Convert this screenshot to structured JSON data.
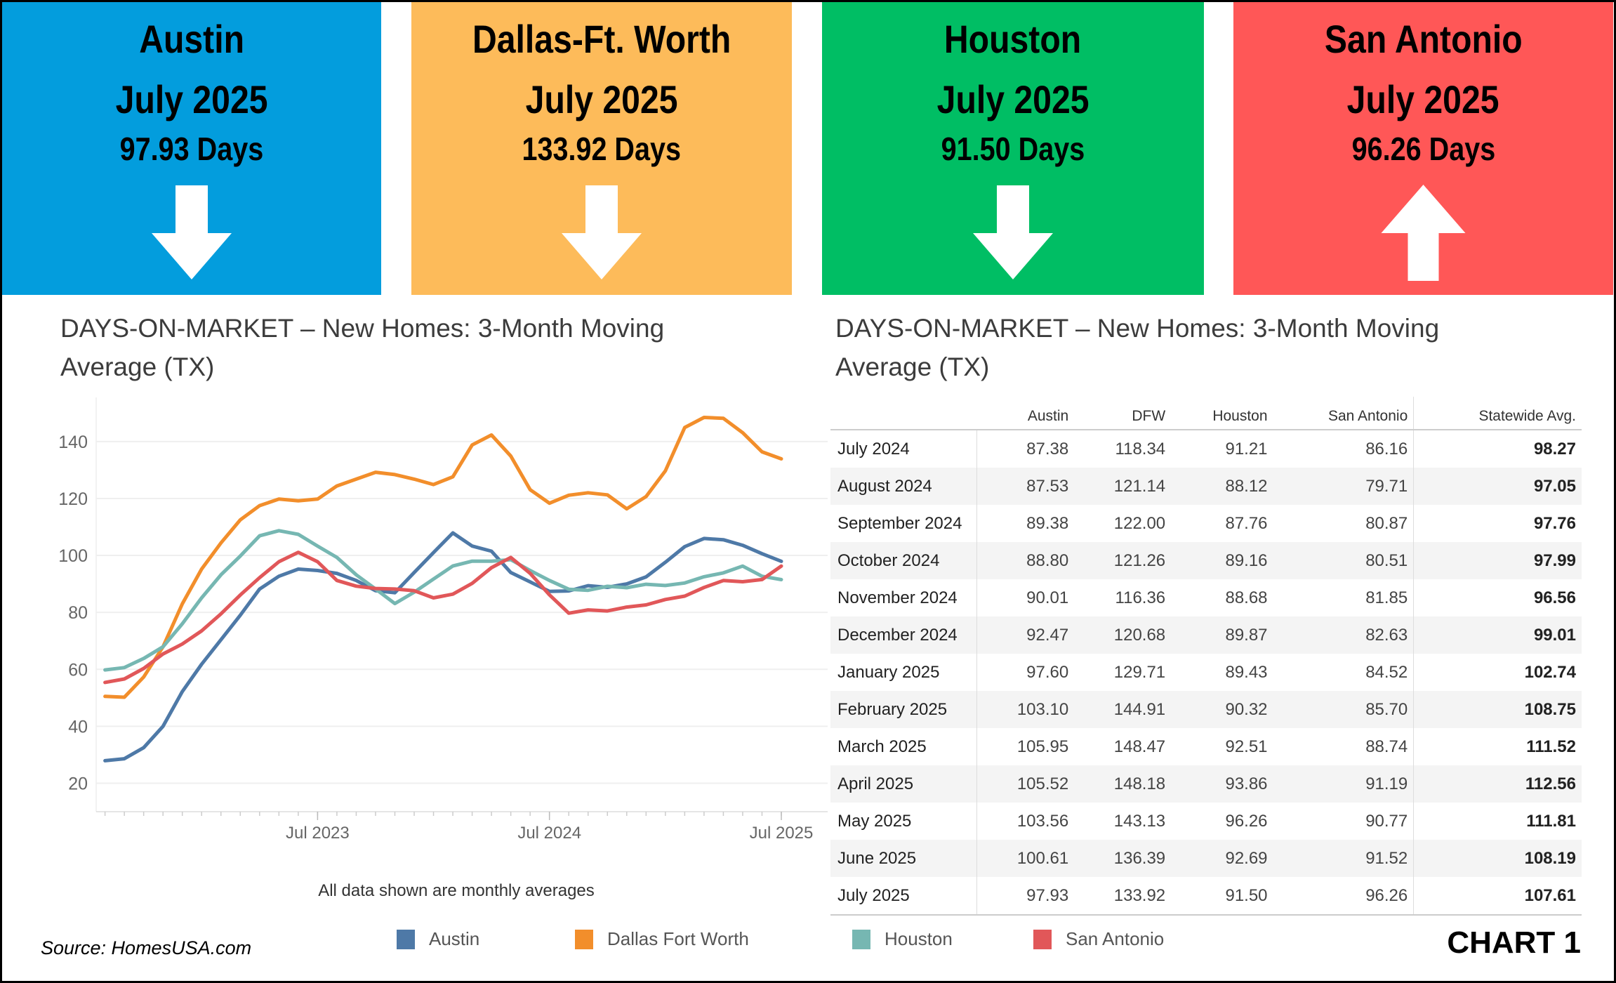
{
  "boxes": [
    {
      "city": "Austin",
      "month": "July 2025",
      "days": "97.93 Days",
      "color": "#039DDD",
      "trend": "down",
      "arrow_icon": "arrow-down-icon"
    },
    {
      "city": "Dallas-Ft. Worth",
      "month": "July 2025",
      "days": "133.92 Days",
      "color": "#FDBB5A",
      "trend": "down",
      "arrow_icon": "arrow-down-icon"
    },
    {
      "city": "Houston",
      "month": "July 2025",
      "days": "91.50 Days",
      "color": "#00BE64",
      "trend": "down",
      "arrow_icon": "arrow-down-icon"
    },
    {
      "city": "San Antonio",
      "month": "July 2025",
      "days": "96.26 Days",
      "color": "#FF5757",
      "trend": "up",
      "arrow_icon": "arrow-up-icon"
    }
  ],
  "left_title": {
    "line1": "DAYS-ON-MARKET – New Homes: 3-Month Moving",
    "line2": "Average (TX)"
  },
  "right_title": {
    "line1": "DAYS-ON-MARKET – New Homes:  3-Month Moving",
    "line2": "Average (TX)"
  },
  "note": "All data shown are monthly averages",
  "source": "Source: HomesUSA.com",
  "chart_label": "CHART 1",
  "chart_data": {
    "type": "line",
    "x_start": "2022-08",
    "x_end": "2025-07",
    "x_ticks": [
      "Jul 2023",
      "Jul 2024",
      "Jul 2025"
    ],
    "y_ticks": [
      20,
      40,
      60,
      80,
      100,
      120,
      140
    ],
    "ylim": [
      10,
      155.5
    ],
    "grid": "horizontal",
    "legend": "bottom",
    "series": [
      {
        "name": "Austin",
        "color": "#4E79A7",
        "values": [
          27.9,
          28.6,
          32.5,
          40,
          52.2,
          61.8,
          70.4,
          79,
          88.2,
          92.7,
          95.2,
          94.7,
          93.7,
          91.2,
          87.6,
          86.9,
          94,
          101,
          107.9,
          103.3,
          101.5,
          94,
          90.7,
          87.38,
          87.53,
          89.38,
          88.8,
          90.01,
          92.47,
          97.6,
          103.1,
          105.95,
          105.52,
          103.56,
          100.61,
          97.93
        ]
      },
      {
        "name": "Dallas Fort Worth",
        "color": "#F28E2B",
        "values": [
          50.5,
          50.2,
          57.3,
          67.9,
          83,
          95.2,
          104.4,
          112.5,
          117.5,
          119.8,
          119.2,
          119.8,
          124.4,
          126.8,
          129.2,
          128.4,
          126.8,
          124.9,
          127.6,
          138.8,
          142.3,
          134.9,
          123.1,
          118.34,
          121.14,
          122.0,
          121.26,
          116.36,
          120.68,
          129.71,
          144.91,
          148.47,
          148.18,
          143.13,
          136.39,
          133.92
        ]
      },
      {
        "name": "Houston",
        "color": "#76B7B2",
        "values": [
          59.8,
          60.6,
          63.8,
          67.9,
          76,
          85.1,
          93.2,
          99.8,
          106.9,
          108.7,
          107.4,
          103.3,
          99.3,
          93.2,
          88.2,
          83.1,
          87.1,
          91.7,
          96.3,
          98,
          98,
          98.5,
          94.7,
          91.21,
          88.12,
          87.76,
          89.16,
          88.68,
          89.87,
          89.43,
          90.32,
          92.51,
          93.86,
          96.26,
          92.69,
          91.5
        ]
      },
      {
        "name": "San Antonio",
        "color": "#E15759",
        "values": [
          55.4,
          56.6,
          60.3,
          65.4,
          68.9,
          73.5,
          79.5,
          86.1,
          92.2,
          97.8,
          101.1,
          97.8,
          91.2,
          89.2,
          88.4,
          88.2,
          87.6,
          85.1,
          86.4,
          90.2,
          95.7,
          99.3,
          93.7,
          86.16,
          79.71,
          80.87,
          80.51,
          81.85,
          82.63,
          84.52,
          85.7,
          88.74,
          91.19,
          90.77,
          91.52,
          96.26
        ]
      }
    ]
  },
  "table": {
    "columns": [
      "",
      "Austin",
      "DFW",
      "Houston",
      "San Antonio",
      "Statewide Avg."
    ],
    "rows": [
      [
        "July 2024",
        "87.38",
        "118.34",
        "91.21",
        "86.16",
        "98.27"
      ],
      [
        "August 2024",
        "87.53",
        "121.14",
        "88.12",
        "79.71",
        "97.05"
      ],
      [
        "September 2024",
        "89.38",
        "122.00",
        "87.76",
        "80.87",
        "97.76"
      ],
      [
        "October 2024",
        "88.80",
        "121.26",
        "89.16",
        "80.51",
        "97.99"
      ],
      [
        "November 2024",
        "90.01",
        "116.36",
        "88.68",
        "81.85",
        "96.56"
      ],
      [
        "December 2024",
        "92.47",
        "120.68",
        "89.87",
        "82.63",
        "99.01"
      ],
      [
        "January 2025",
        "97.60",
        "129.71",
        "89.43",
        "84.52",
        "102.74"
      ],
      [
        "February 2025",
        "103.10",
        "144.91",
        "90.32",
        "85.70",
        "108.75"
      ],
      [
        "March 2025",
        "105.95",
        "148.47",
        "92.51",
        "88.74",
        "111.52"
      ],
      [
        "April 2025",
        "105.52",
        "148.18",
        "93.86",
        "91.19",
        "112.56"
      ],
      [
        "May 2025",
        "103.56",
        "143.13",
        "96.26",
        "90.77",
        "111.81"
      ],
      [
        "June 2025",
        "100.61",
        "136.39",
        "92.69",
        "91.52",
        "108.19"
      ],
      [
        "July 2025",
        "97.93",
        "133.92",
        "91.50",
        "96.26",
        "107.61"
      ]
    ]
  }
}
